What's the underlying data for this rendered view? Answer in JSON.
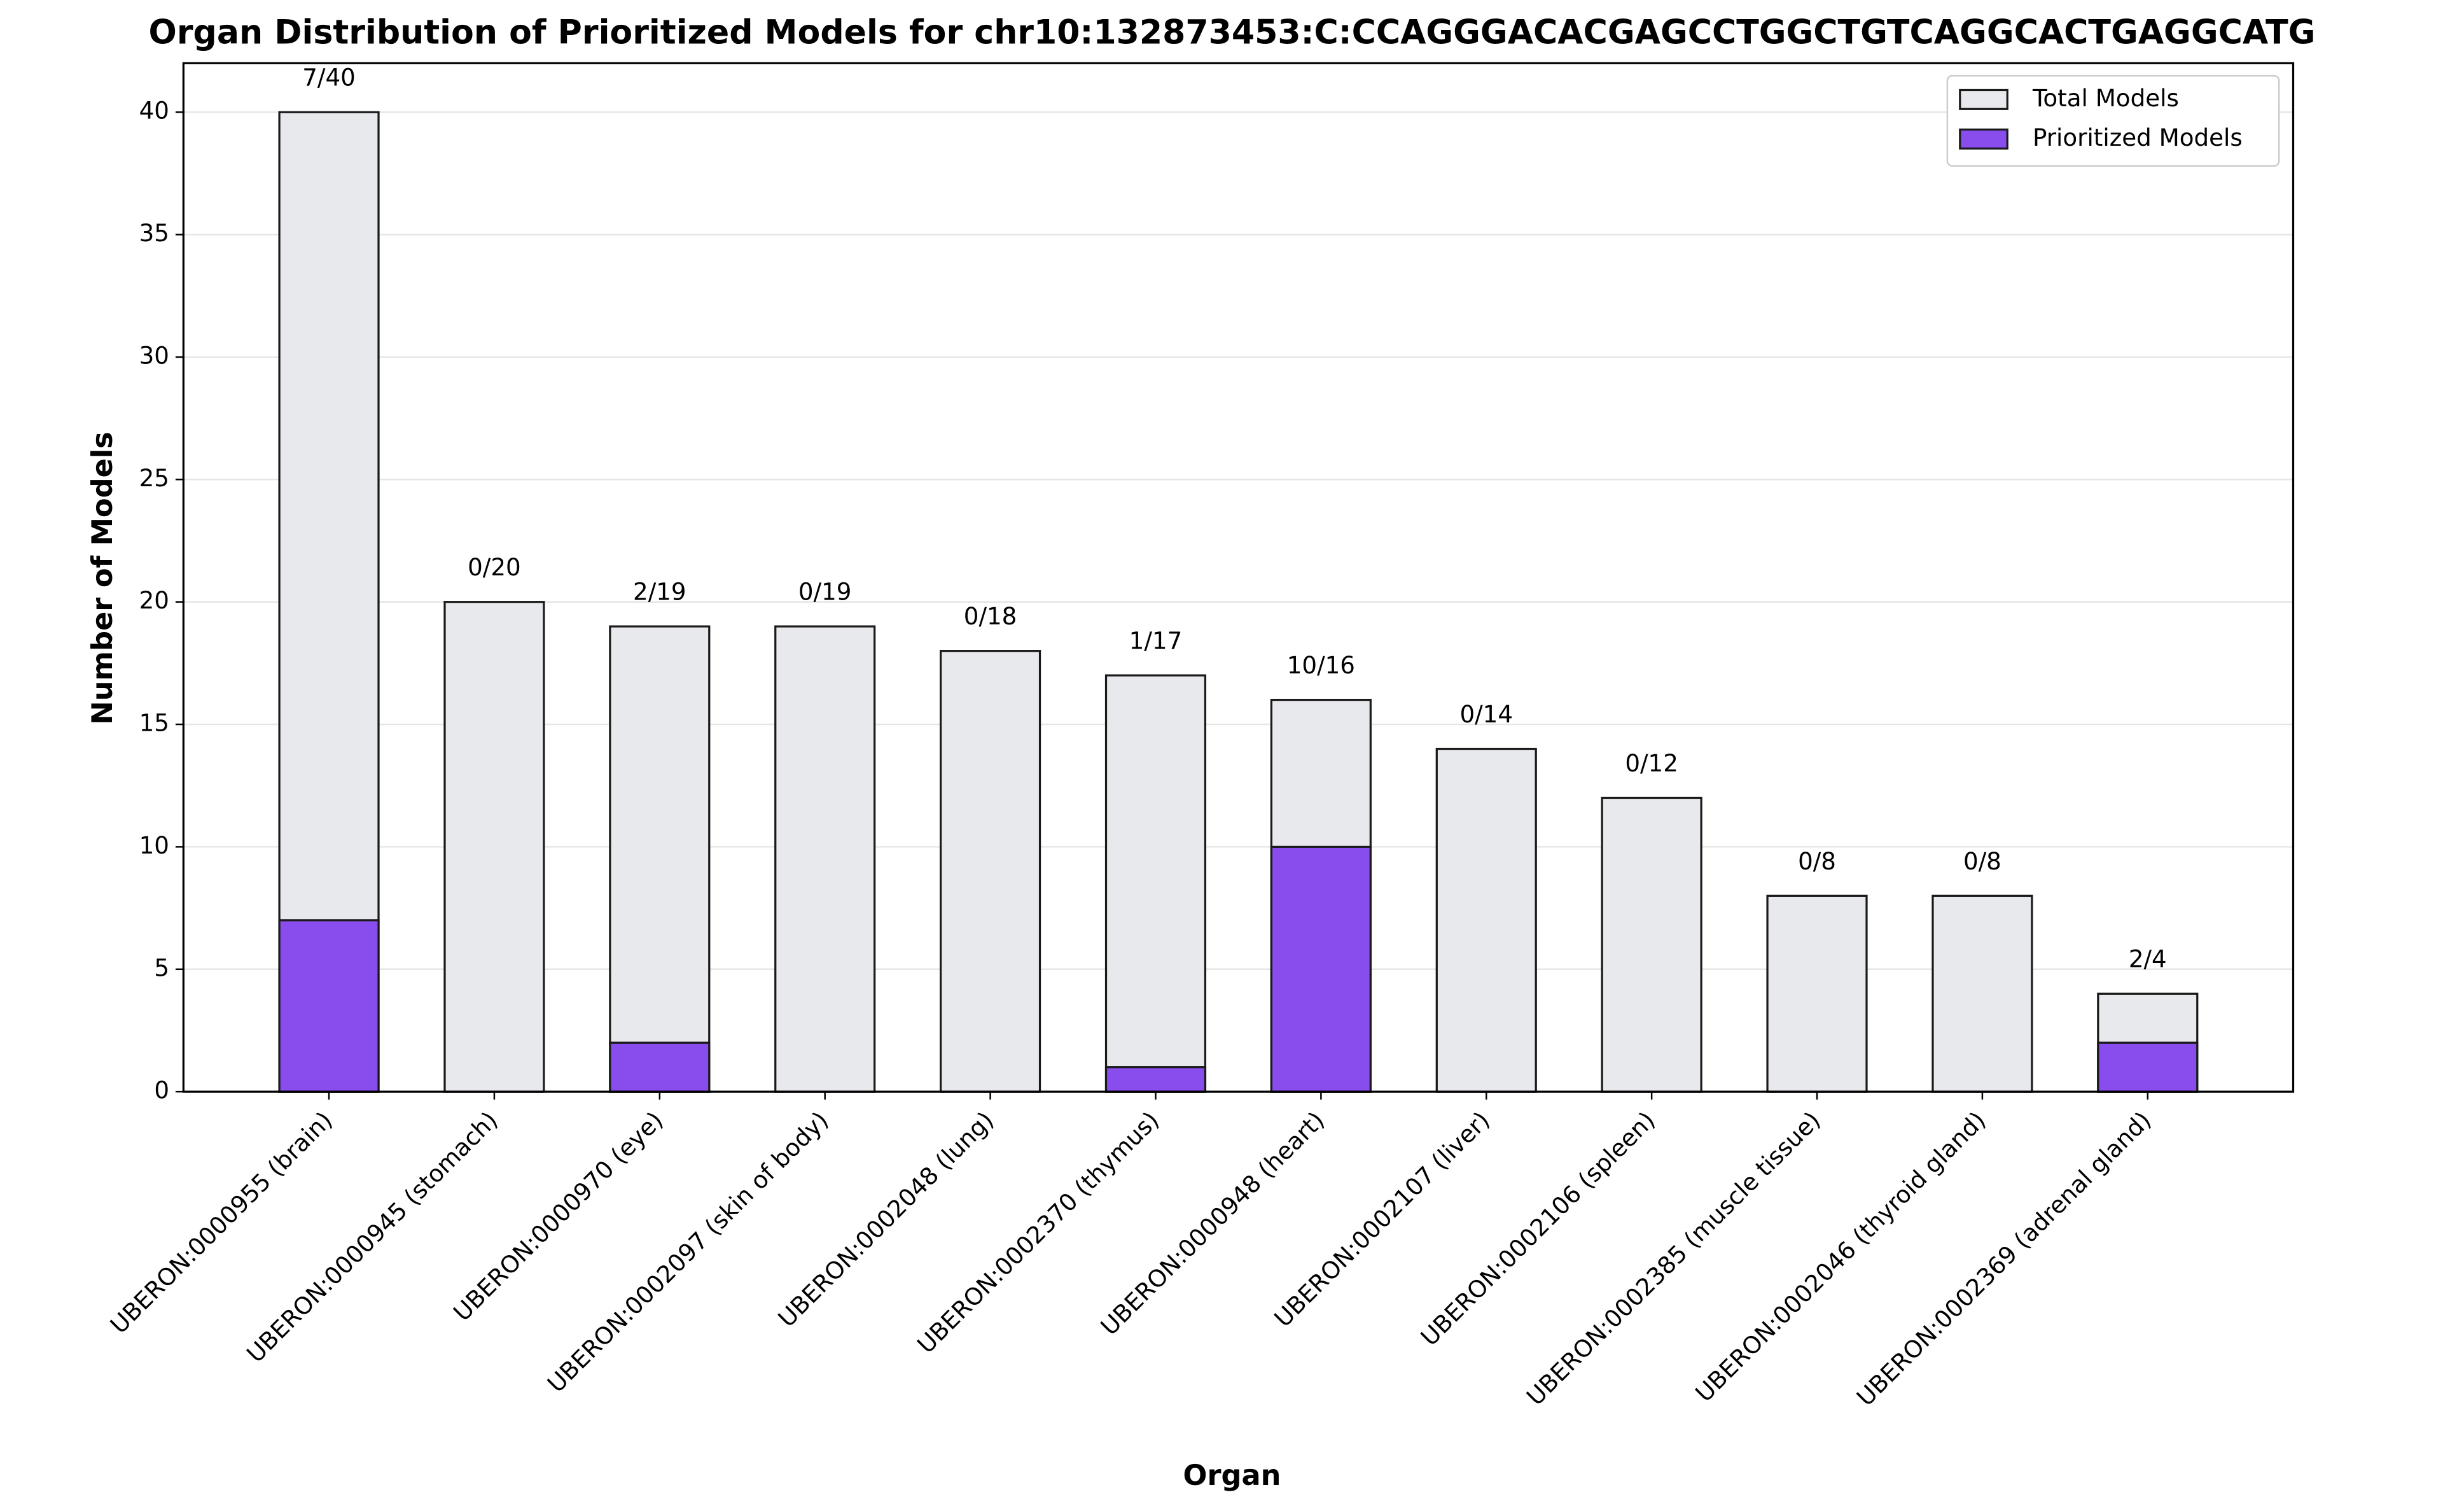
{
  "chart_data": {
    "type": "bar",
    "title": "Organ Distribution of Prioritized Models for chr10:132873453:C:CCAGGGACACGAGCCTGGCTGTCAGGCACTGAGGCATG",
    "x_label": "Organ",
    "y_label": "Number of Models",
    "categories": [
      "UBERON:0000955 (brain)",
      "UBERON:0000945 (stomach)",
      "UBERON:0000970 (eye)",
      "UBERON:0002097 (skin of body)",
      "UBERON:0002048 (lung)",
      "UBERON:0002370 (thymus)",
      "UBERON:0000948 (heart)",
      "UBERON:0002107 (liver)",
      "UBERON:0002106 (spleen)",
      "UBERON:0002385 (muscle tissue)",
      "UBERON:0002046 (thyroid gland)",
      "UBERON:0002369 (adrenal gland)"
    ],
    "series": [
      {
        "name": "Total Models",
        "color": "#e8e9ec",
        "values": [
          40,
          20,
          19,
          19,
          18,
          17,
          16,
          14,
          12,
          8,
          8,
          4
        ],
        "value_labels": [
          "7/40",
          "0/20",
          "2/19",
          "0/19",
          "0/18",
          "1/17",
          "10/16",
          "0/14",
          "0/12",
          "0/8",
          "0/8",
          "2/4"
        ]
      },
      {
        "name": "Prioritized Models",
        "color": "#894ded",
        "values": [
          7,
          0,
          2,
          0,
          0,
          1,
          10,
          0,
          0,
          0,
          0,
          2
        ]
      }
    ],
    "ylim": [
      0,
      42
    ],
    "yticks": [
      0,
      5,
      10,
      15,
      20,
      25,
      30,
      35,
      40
    ],
    "grid": true,
    "legend": "upper right"
  }
}
